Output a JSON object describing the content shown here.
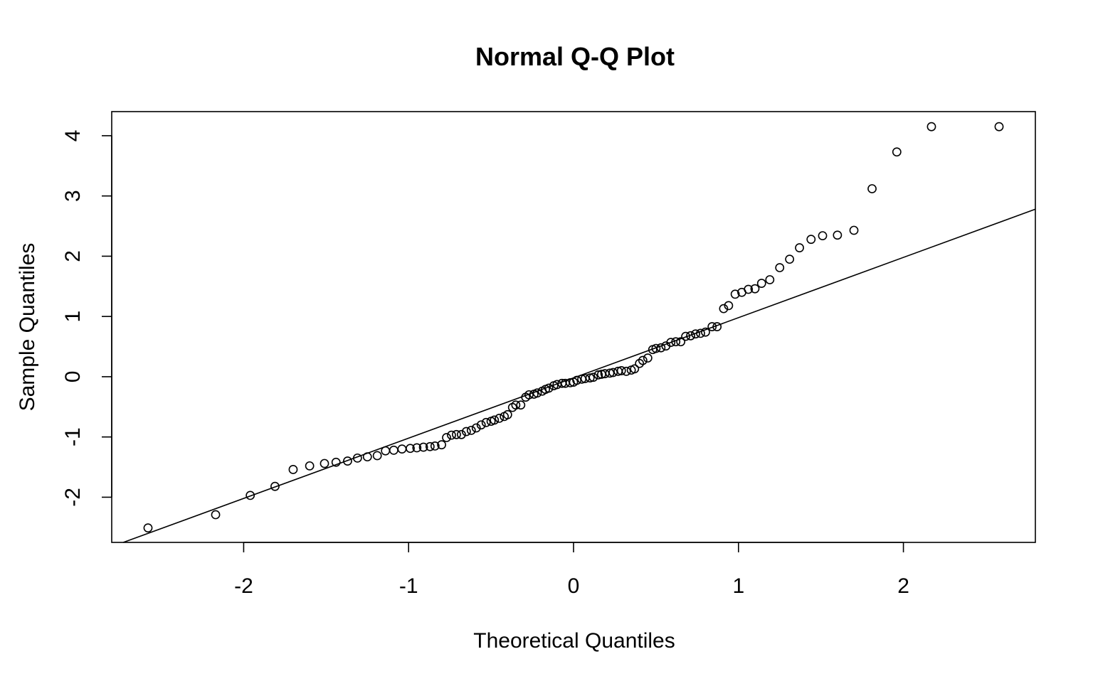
{
  "chart_data": {
    "type": "scatter",
    "title": "Normal Q-Q Plot",
    "xlabel": "Theoretical Quantiles",
    "ylabel": "Sample Quantiles",
    "xlim": [
      -2.8,
      2.8
    ],
    "ylim": [
      -2.75,
      4.4
    ],
    "xticks": [
      -2,
      -1,
      0,
      1,
      2
    ],
    "yticks": [
      -2,
      -1,
      0,
      1,
      2,
      3,
      4
    ],
    "xtick_labels": [
      "-2",
      "-1",
      "0",
      "1",
      "2"
    ],
    "ytick_labels": [
      "-2",
      "-1",
      "0",
      "1",
      "2",
      "3",
      "4"
    ],
    "grid": false,
    "legend": "none",
    "marker": "open-circle",
    "colors": {
      "points": "#000000",
      "line": "#000000",
      "frame": "#000000"
    },
    "reference_line": {
      "slope": 1.0,
      "intercept": -0.02
    },
    "series": [
      {
        "x": [
          -2.58,
          -2.17,
          -1.96,
          -1.81,
          -1.7,
          -1.6,
          -1.51,
          -1.44,
          -1.37,
          -1.31,
          -1.25,
          -1.19,
          -1.14,
          -1.09,
          -1.04,
          -0.99,
          -0.95,
          -0.91,
          -0.87,
          -0.84,
          -0.8,
          -0.77,
          -0.74,
          -0.71,
          -0.68,
          -0.65,
          -0.62,
          -0.59,
          -0.56,
          -0.53,
          -0.5,
          -0.48,
          -0.45,
          -0.42,
          -0.4,
          -0.37,
          -0.35,
          -0.32,
          -0.29,
          -0.27,
          -0.24,
          -0.22,
          -0.19,
          -0.17,
          -0.15,
          -0.12,
          -0.1,
          -0.07,
          -0.05,
          -0.02,
          0.0,
          0.02,
          0.05,
          0.07,
          0.1,
          0.12,
          0.15,
          0.17,
          0.19,
          0.22,
          0.24,
          0.27,
          0.29,
          0.32,
          0.35,
          0.37,
          0.4,
          0.42,
          0.45,
          0.48,
          0.5,
          0.53,
          0.56,
          0.59,
          0.62,
          0.65,
          0.68,
          0.71,
          0.74,
          0.77,
          0.8,
          0.84,
          0.87,
          0.91,
          0.94,
          0.98,
          1.02,
          1.06,
          1.1,
          1.14,
          1.19,
          1.25,
          1.31,
          1.37,
          1.44,
          1.51,
          1.6,
          1.7,
          1.81,
          1.96,
          2.17,
          2.58
        ],
        "y": [
          -2.51,
          -2.29,
          -1.97,
          -1.82,
          -1.54,
          -1.48,
          -1.44,
          -1.42,
          -1.4,
          -1.35,
          -1.33,
          -1.31,
          -1.23,
          -1.22,
          -1.2,
          -1.19,
          -1.18,
          -1.17,
          -1.16,
          -1.15,
          -1.13,
          -1.01,
          -0.97,
          -0.96,
          -0.96,
          -0.91,
          -0.89,
          -0.85,
          -0.8,
          -0.76,
          -0.74,
          -0.72,
          -0.69,
          -0.66,
          -0.63,
          -0.51,
          -0.47,
          -0.47,
          -0.34,
          -0.3,
          -0.29,
          -0.27,
          -0.24,
          -0.21,
          -0.19,
          -0.15,
          -0.13,
          -0.11,
          -0.11,
          -0.1,
          -0.09,
          -0.06,
          -0.04,
          -0.03,
          -0.02,
          -0.01,
          0.03,
          0.04,
          0.05,
          0.06,
          0.07,
          0.09,
          0.1,
          0.09,
          0.11,
          0.13,
          0.22,
          0.27,
          0.31,
          0.45,
          0.47,
          0.48,
          0.51,
          0.57,
          0.58,
          0.58,
          0.67,
          0.68,
          0.71,
          0.72,
          0.74,
          0.83,
          0.83,
          1.13,
          1.18,
          1.37,
          1.4,
          1.45,
          1.46,
          1.55,
          1.61,
          1.81,
          1.95,
          2.14,
          2.28,
          2.34,
          2.35,
          2.43,
          3.12,
          3.73,
          4.15,
          4.15
        ]
      }
    ]
  }
}
